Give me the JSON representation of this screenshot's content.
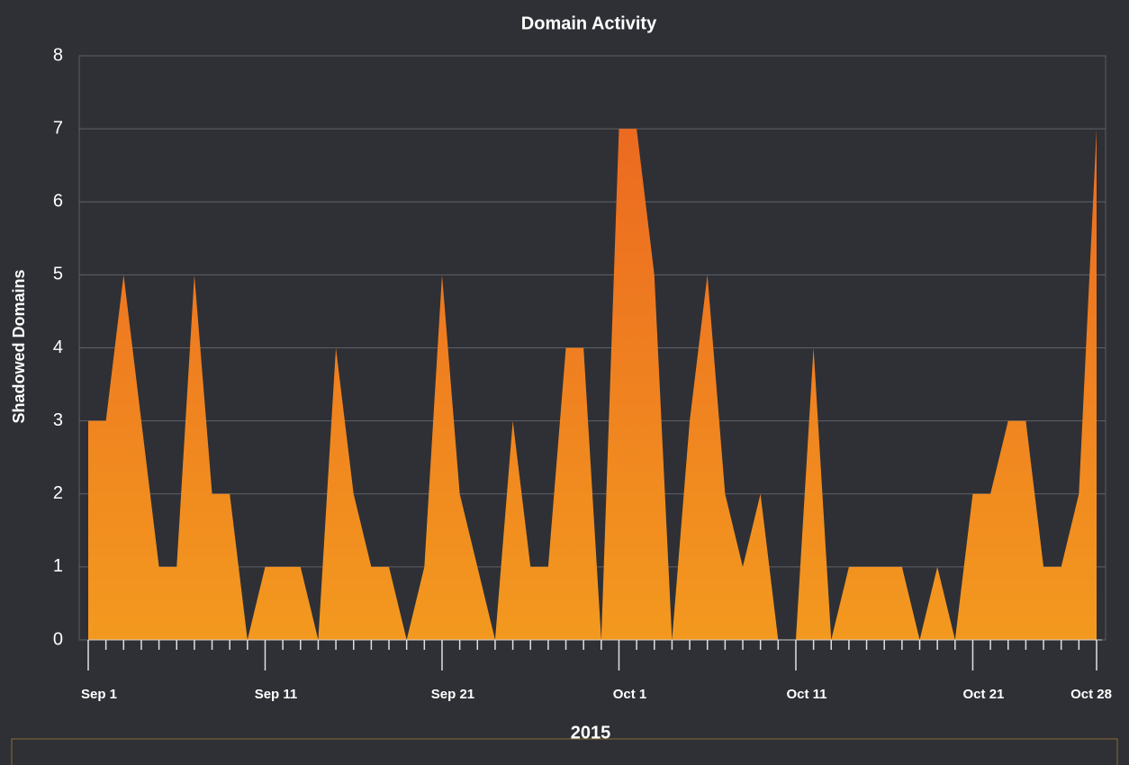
{
  "chart_data": {
    "type": "area",
    "title": "Domain Activity",
    "y_label": "Shadowed Domains",
    "x_label": "2015",
    "categories": [
      "Sep 1",
      null,
      null,
      null,
      null,
      null,
      null,
      null,
      null,
      null,
      "Sep 11",
      null,
      null,
      null,
      null,
      null,
      null,
      null,
      null,
      null,
      "Sep 21",
      null,
      null,
      null,
      null,
      null,
      null,
      null,
      null,
      null,
      "Oct 1",
      null,
      null,
      null,
      null,
      null,
      null,
      null,
      null,
      null,
      "Oct 11",
      null,
      null,
      null,
      null,
      null,
      null,
      null,
      null,
      null,
      "Oct 21",
      null,
      null,
      null,
      null,
      null,
      null,
      "Oct 28"
    ],
    "values": [
      3,
      3,
      5,
      3,
      1,
      1,
      5,
      2,
      2,
      0,
      1,
      1,
      1,
      0,
      4,
      2,
      1,
      1,
      0,
      1,
      5,
      2,
      1,
      0,
      3,
      1,
      1,
      4,
      4,
      0,
      7,
      7,
      5,
      0,
      3,
      5,
      2,
      1,
      2,
      0,
      0,
      4,
      0,
      1,
      1,
      1,
      1,
      0,
      1,
      0,
      2,
      2,
      3,
      3,
      1,
      1,
      2,
      7
    ],
    "gradient": [
      "#ec6a20",
      "#f3991f"
    ],
    "ylim": [
      0,
      8
    ],
    "yticks": [
      0,
      1,
      2,
      3,
      4,
      5,
      6,
      7,
      8
    ],
    "grid": true
  }
}
